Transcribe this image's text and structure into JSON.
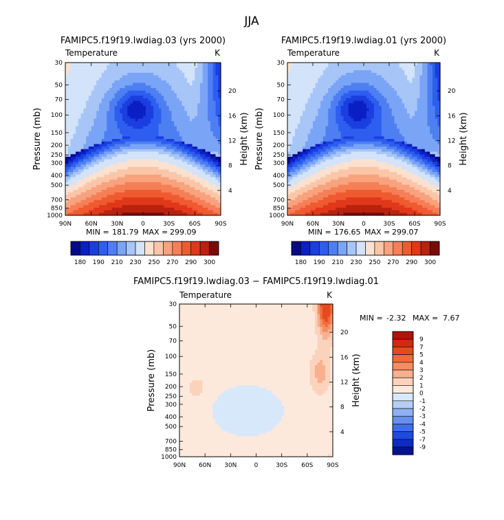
{
  "figure": {
    "title": "JJA",
    "diff_stats_line": {
      "min_label": "MIN =",
      "min": "-2.32",
      "max_label": "MAX =",
      "max": "7.67"
    }
  },
  "chart_data": [
    {
      "type": "heatmap",
      "title": "FAMIPC5.f19f19.lwdiag.03 (yrs 2000)",
      "variable": "Temperature",
      "units": "K",
      "xlabel": "",
      "ylabel": "Pressure (mb)",
      "ylabel_right": "Height (km)",
      "x_ticks": [
        "90N",
        "60N",
        "30N",
        "0",
        "30S",
        "60S",
        "90S"
      ],
      "x_range": [
        90,
        -90
      ],
      "y_ticks": [
        "30",
        "50",
        "70",
        "100",
        "150",
        "200",
        "250",
        "300",
        "400",
        "500",
        "700",
        "850",
        "1000"
      ],
      "y_range_mb": [
        1000,
        30
      ],
      "y_scale": "log",
      "right_ticks_km": [
        "20",
        "16",
        "12",
        "8",
        "4"
      ],
      "stats": {
        "min_label": "MIN =",
        "min": "181.79",
        "max_label": "MAX =",
        "max": "299.09"
      },
      "colorbar_levels": [
        "180",
        "190",
        "210",
        "230",
        "250",
        "270",
        "290",
        "300"
      ],
      "field_model": {
        "offset": 0.0
      }
    },
    {
      "type": "heatmap",
      "title": "FAMIPC5.f19f19.lwdiag.01 (yrs 2000)",
      "variable": "Temperature",
      "units": "K",
      "xlabel": "",
      "ylabel": "Pressure (mb)",
      "ylabel_right": "Height (km)",
      "x_ticks": [
        "90N",
        "60N",
        "30N",
        "0",
        "30S",
        "60S",
        "90S"
      ],
      "x_range": [
        90,
        -90
      ],
      "y_ticks": [
        "30",
        "50",
        "70",
        "100",
        "150",
        "200",
        "250",
        "300",
        "400",
        "500",
        "700",
        "850",
        "1000"
      ],
      "y_range_mb": [
        1000,
        30
      ],
      "y_scale": "log",
      "right_ticks_km": [
        "20",
        "16",
        "12",
        "8",
        "4"
      ],
      "stats": {
        "min_label": "MIN =",
        "min": "176.65",
        "max_label": "MAX =",
        "max": "299.07"
      },
      "colorbar_levels": [
        "180",
        "190",
        "210",
        "230",
        "250",
        "270",
        "290",
        "300"
      ],
      "field_model": {
        "offset": -0.4
      }
    },
    {
      "type": "heatmap",
      "title": "FAMIPC5.f19f19.lwdiag.03 − FAMIPC5.f19f19.lwdiag.01",
      "variable": "Temperature",
      "units": "K",
      "xlabel": "",
      "ylabel": "Pressure (mb)",
      "ylabel_right": "Height (km)",
      "x_ticks": [
        "90N",
        "60N",
        "30N",
        "0",
        "30S",
        "60S",
        "90S"
      ],
      "x_range": [
        90,
        -90
      ],
      "y_ticks": [
        "30",
        "50",
        "70",
        "100",
        "150",
        "200",
        "250",
        "300",
        "400",
        "500",
        "700",
        "850",
        "1000"
      ],
      "y_range_mb": [
        1000,
        30
      ],
      "y_scale": "log",
      "right_ticks_km": [
        "20",
        "16",
        "12",
        "8",
        "4"
      ],
      "stats": {
        "min": "-2.32",
        "max": "7.67"
      },
      "colorbar_levels": [
        "9",
        "7",
        "5",
        "4",
        "3",
        "2",
        "1",
        "0",
        "-1",
        "-2",
        "-3",
        "-4",
        "-5",
        "-7",
        "-9"
      ]
    }
  ],
  "colors": {
    "temp_palette": [
      "#08088a",
      "#0a1fc4",
      "#1a3ee0",
      "#2d5ef0",
      "#4e7ff2",
      "#7aa4f5",
      "#a7c5f7",
      "#d2e3fa",
      "#fbe1cf",
      "#fbc6a8",
      "#f8a27e",
      "#f57f56",
      "#ef5a30",
      "#e0381a",
      "#b8220e",
      "#7a0a08"
    ],
    "diff_palette": [
      "#b0120c",
      "#cf2a12",
      "#e44a1e",
      "#f26a3a",
      "#f58d62",
      "#f8b08e",
      "#fbd2bb",
      "#fde9db",
      "#d8e8fb",
      "#b6cdf5",
      "#8fb1f2",
      "#6690ee",
      "#3f6deb",
      "#1f49df",
      "#0d2cc4",
      "#05138f"
    ]
  }
}
